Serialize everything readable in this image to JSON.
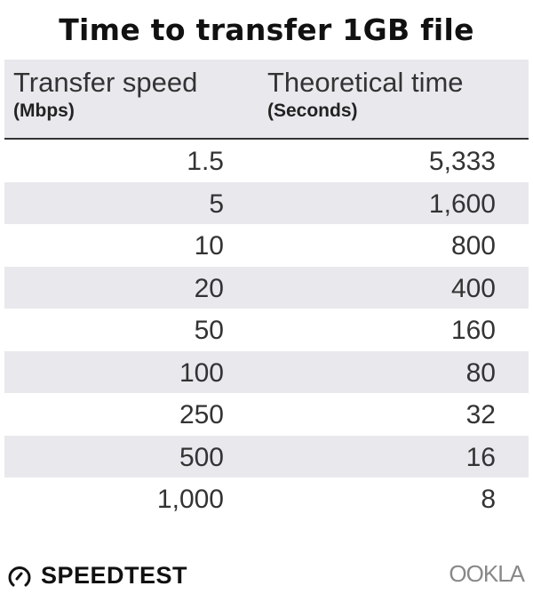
{
  "title": "Time to transfer 1GB file",
  "chart_data": {
    "type": "table",
    "title": "Time to transfer 1GB file",
    "columns": [
      {
        "label": "Transfer speed",
        "unit": "(Mbps)"
      },
      {
        "label": "Theoretical time",
        "unit": "(Seconds)"
      }
    ],
    "rows": [
      [
        "1.5",
        "5,333"
      ],
      [
        "5",
        "1,600"
      ],
      [
        "10",
        "800"
      ],
      [
        "20",
        "400"
      ],
      [
        "50",
        "160"
      ],
      [
        "100",
        "80"
      ],
      [
        "250",
        "32"
      ],
      [
        "500",
        "16"
      ],
      [
        "1,000",
        "8"
      ]
    ]
  },
  "colors": {
    "band": "#e9e8ed",
    "text": "#333333"
  },
  "footer": {
    "left_logo": "SPEEDTEST",
    "right_logo": "OOKLA"
  }
}
